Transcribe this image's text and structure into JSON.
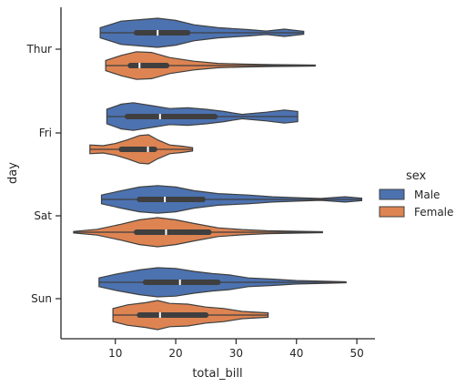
{
  "chart_data": {
    "type": "violin",
    "orientation": "horizontal",
    "xlabel": "total_bill",
    "ylabel": "day",
    "xlim": [
      1,
      53
    ],
    "xticks": [
      10,
      20,
      30,
      40,
      50
    ],
    "categories": [
      "Thur",
      "Fri",
      "Sat",
      "Sun"
    ],
    "legend": {
      "title": "sex",
      "placement": "right"
    },
    "grid": false,
    "series": [
      {
        "name": "Male",
        "color": "#4c72b0",
        "stats": [
          {
            "day": "Thur",
            "min": 7.5,
            "q1": 13.5,
            "median": 17.0,
            "q3": 22.0,
            "max": 41.2
          },
          {
            "day": "Fri",
            "min": 8.6,
            "q1": 12.0,
            "median": 17.4,
            "q3": 26.5,
            "max": 40.2
          },
          {
            "day": "Sat",
            "min": 7.7,
            "q1": 14.0,
            "median": 18.2,
            "q3": 24.5,
            "max": 50.8
          },
          {
            "day": "Sun",
            "min": 7.3,
            "q1": 15.0,
            "median": 20.7,
            "q3": 27.0,
            "max": 48.2
          }
        ]
      },
      {
        "name": "Female",
        "color": "#dd8452",
        "stats": [
          {
            "day": "Thur",
            "min": 8.4,
            "q1": 12.5,
            "median": 14.0,
            "q3": 18.5,
            "max": 43.1
          },
          {
            "day": "Fri",
            "min": 5.8,
            "q1": 11.0,
            "median": 15.4,
            "q3": 16.5,
            "max": 22.8
          },
          {
            "day": "Sat",
            "min": 3.1,
            "q1": 13.5,
            "median": 18.4,
            "q3": 25.5,
            "max": 44.3
          },
          {
            "day": "Sun",
            "min": 9.6,
            "q1": 14.0,
            "median": 17.4,
            "q3": 25.0,
            "max": 35.3
          }
        ]
      }
    ]
  }
}
